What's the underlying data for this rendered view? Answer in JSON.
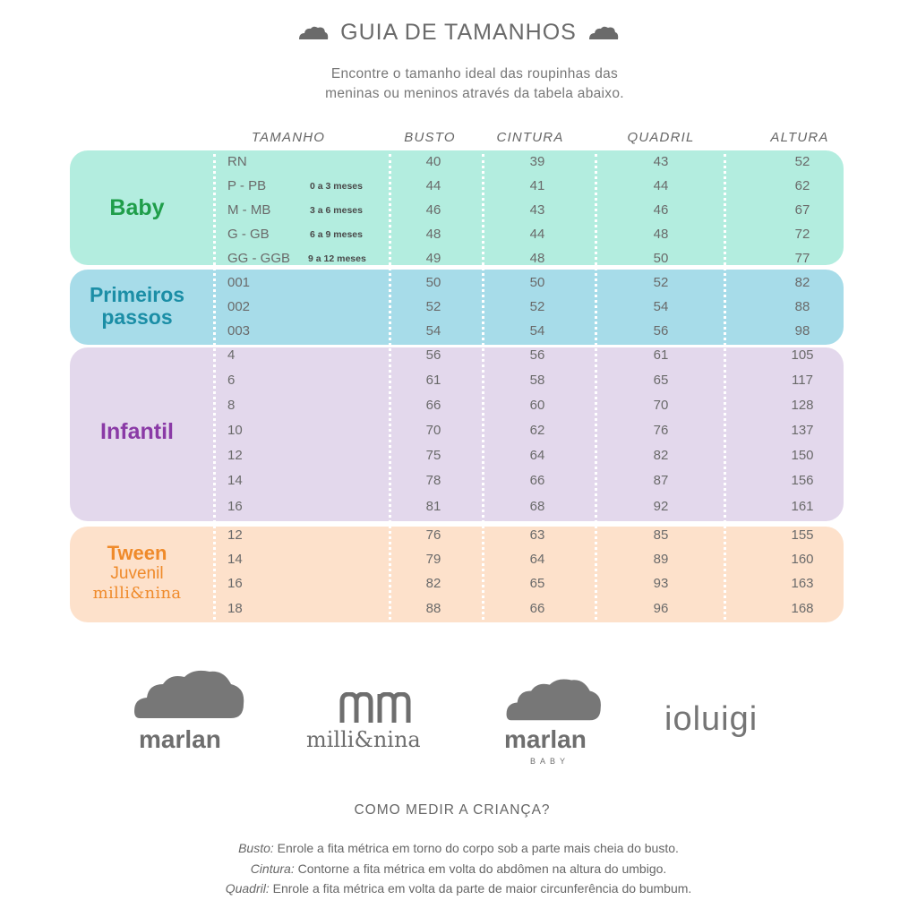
{
  "header": {
    "title": "GUIA DE TAMANHOS",
    "subtitle_line1": "Encontre o tamanho ideal das roupinhas das",
    "subtitle_line2": "meninas ou meninos através da tabela abaixo."
  },
  "columns": {
    "tamanho": "TAMANHO",
    "busto": "BUSTO",
    "cintura": "CINTURA",
    "quadril": "QUADRIL",
    "altura": "ALTURA"
  },
  "groups": {
    "baby": "Baby",
    "primeiros_1": "Primeiros",
    "primeiros_2": "passos",
    "infantil": "Infantil",
    "tween_1": "Tween",
    "tween_2": "Juvenil",
    "tween_3": "milli&nina"
  },
  "rows": [
    {
      "size": "RN",
      "age": "",
      "busto": "40",
      "cintura": "39",
      "quadril": "43",
      "altura": "52"
    },
    {
      "size": "P - PB",
      "age": "0 a 3 meses",
      "busto": "44",
      "cintura": "41",
      "quadril": "44",
      "altura": "62"
    },
    {
      "size": "M - MB",
      "age": "3 a 6 meses",
      "busto": "46",
      "cintura": "43",
      "quadril": "46",
      "altura": "67"
    },
    {
      "size": "G - GB",
      "age": "6 a 9 meses",
      "busto": "48",
      "cintura": "44",
      "quadril": "48",
      "altura": "72"
    },
    {
      "size": "GG - GGB",
      "age": "9 a 12 meses",
      "busto": "49",
      "cintura": "48",
      "quadril": "50",
      "altura": "77"
    },
    {
      "size": "001",
      "age": "",
      "busto": "50",
      "cintura": "50",
      "quadril": "52",
      "altura": "82"
    },
    {
      "size": "002",
      "age": "",
      "busto": "52",
      "cintura": "52",
      "quadril": "54",
      "altura": "88"
    },
    {
      "size": "003",
      "age": "",
      "busto": "54",
      "cintura": "54",
      "quadril": "56",
      "altura": "98"
    },
    {
      "size": "4",
      "age": "",
      "busto": "56",
      "cintura": "56",
      "quadril": "61",
      "altura": "105"
    },
    {
      "size": "6",
      "age": "",
      "busto": "61",
      "cintura": "58",
      "quadril": "65",
      "altura": "117"
    },
    {
      "size": "8",
      "age": "",
      "busto": "66",
      "cintura": "60",
      "quadril": "70",
      "altura": "128"
    },
    {
      "size": "10",
      "age": "",
      "busto": "70",
      "cintura": "62",
      "quadril": "76",
      "altura": "137"
    },
    {
      "size": "12",
      "age": "",
      "busto": "75",
      "cintura": "64",
      "quadril": "82",
      "altura": "150"
    },
    {
      "size": "14",
      "age": "",
      "busto": "78",
      "cintura": "66",
      "quadril": "87",
      "altura": "156"
    },
    {
      "size": "16",
      "age": "",
      "busto": "81",
      "cintura": "68",
      "quadril": "92",
      "altura": "161"
    },
    {
      "size": "12",
      "age": "",
      "busto": "76",
      "cintura": "63",
      "quadril": "85",
      "altura": "155"
    },
    {
      "size": "14",
      "age": "",
      "busto": "79",
      "cintura": "64",
      "quadril": "89",
      "altura": "160"
    },
    {
      "size": "16",
      "age": "",
      "busto": "82",
      "cintura": "65",
      "quadril": "93",
      "altura": "163"
    },
    {
      "size": "18",
      "age": "",
      "busto": "88",
      "cintura": "66",
      "quadril": "96",
      "altura": "168"
    }
  ],
  "brands": {
    "marlan": "marlan",
    "millinina": "milli&nina",
    "marlan_baby": "marlan",
    "marlan_baby_sub": "BABY",
    "ioluigi": "ioluigi"
  },
  "howto": {
    "heading": "COMO MEDIR A CRIANÇA?",
    "busto_term": "Busto:",
    "busto_text": " Enrole a fita métrica em torno do corpo sob a parte mais cheia do busto.",
    "cintura_term": "Cintura:",
    "cintura_text": " Contorne a fita métrica em volta do abdômen na altura do umbigo.",
    "quadril_term": "Quadril:",
    "quadril_text": " Enrole a fita métrica em volta da parte de maior circunferência do bumbum."
  },
  "colors": {
    "baby": "#b3eddf",
    "primeiros": "#a7dce9",
    "infantil": "#e3d8ec",
    "tween": "#fde1cb",
    "baby_label": "#1f9e4a",
    "primeiros_label": "#1b8ea6",
    "infantil_label": "#8a3aa6",
    "tween_label": "#ef8a2a"
  }
}
